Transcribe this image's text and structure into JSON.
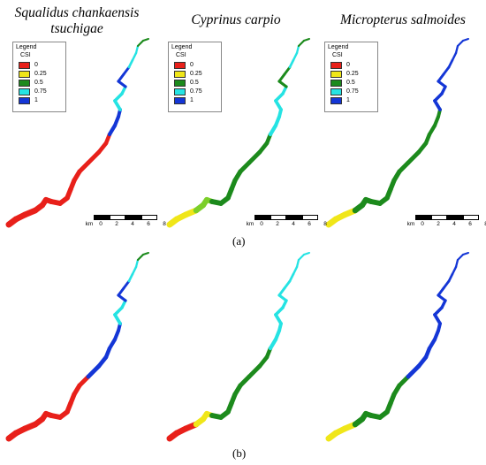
{
  "titles": {
    "col1": "Squalidus chankaensis tsuchigae",
    "col2": "Cyprinus carpio",
    "col3": "Micropterus salmoides"
  },
  "panel_labels": {
    "a": "(a)",
    "b": "(b)"
  },
  "legend": {
    "title": "Legend",
    "field": "CSI",
    "items": [
      {
        "label": "0",
        "color": "#e8201a"
      },
      {
        "label": "0.25",
        "color": "#f0e619"
      },
      {
        "label": "0.5",
        "color": "#1c8a1c"
      },
      {
        "label": "0.75",
        "color": "#25e3e3"
      },
      {
        "label": "1",
        "color": "#1436d6"
      }
    ]
  },
  "scalebar": {
    "unit": "km",
    "ticks": [
      "0",
      "2",
      "4",
      "6",
      "8"
    ]
  },
  "map_row_a": [
    {
      "species": "Squalidus chankaensis tsuchigae",
      "csi_colors_downstream_to_upstream": [
        "#e8201a",
        "#e8201a",
        "#e8201a",
        "#e8201a",
        "#e8201a",
        "#1436d6",
        "#25e3e3",
        "#1436d6",
        "#25e3e3",
        "#1c8a1c"
      ]
    },
    {
      "species": "Cyprinus carpio",
      "csi_colors_downstream_to_upstream": [
        "#f0e619",
        "#7ccf2a",
        "#1c8a1c",
        "#1c8a1c",
        "#1c8a1c",
        "#25e3e3",
        "#25e3e3",
        "#1c8a1c",
        "#25e3e3",
        "#1c8a1c"
      ]
    },
    {
      "species": "Micropterus salmoides",
      "csi_colors_downstream_to_upstream": [
        "#f0e619",
        "#1c8a1c",
        "#1c8a1c",
        "#1c8a1c",
        "#1c8a1c",
        "#1c8a1c",
        "#1436d6",
        "#1436d6",
        "#1436d6",
        "#1436d6"
      ]
    }
  ],
  "map_row_b": [
    {
      "species": "Squalidus chankaensis tsuchigae",
      "csi_colors_downstream_to_upstream": [
        "#e8201a",
        "#e8201a",
        "#e8201a",
        "#e8201a",
        "#1436d6",
        "#1436d6",
        "#25e3e3",
        "#1436d6",
        "#25e3e3",
        "#1c8a1c"
      ]
    },
    {
      "species": "Cyprinus carpio",
      "csi_colors_downstream_to_upstream": [
        "#e8201a",
        "#f0e619",
        "#1c8a1c",
        "#1c8a1c",
        "#1c8a1c",
        "#25e3e3",
        "#25e3e3",
        "#25e3e3",
        "#25e3e3",
        "#25e3e3"
      ]
    },
    {
      "species": "Micropterus salmoides",
      "csi_colors_downstream_to_upstream": [
        "#f0e619",
        "#1c8a1c",
        "#1c8a1c",
        "#1c8a1c",
        "#1436d6",
        "#1436d6",
        "#1436d6",
        "#1436d6",
        "#1436d6",
        "#1436d6"
      ]
    }
  ]
}
